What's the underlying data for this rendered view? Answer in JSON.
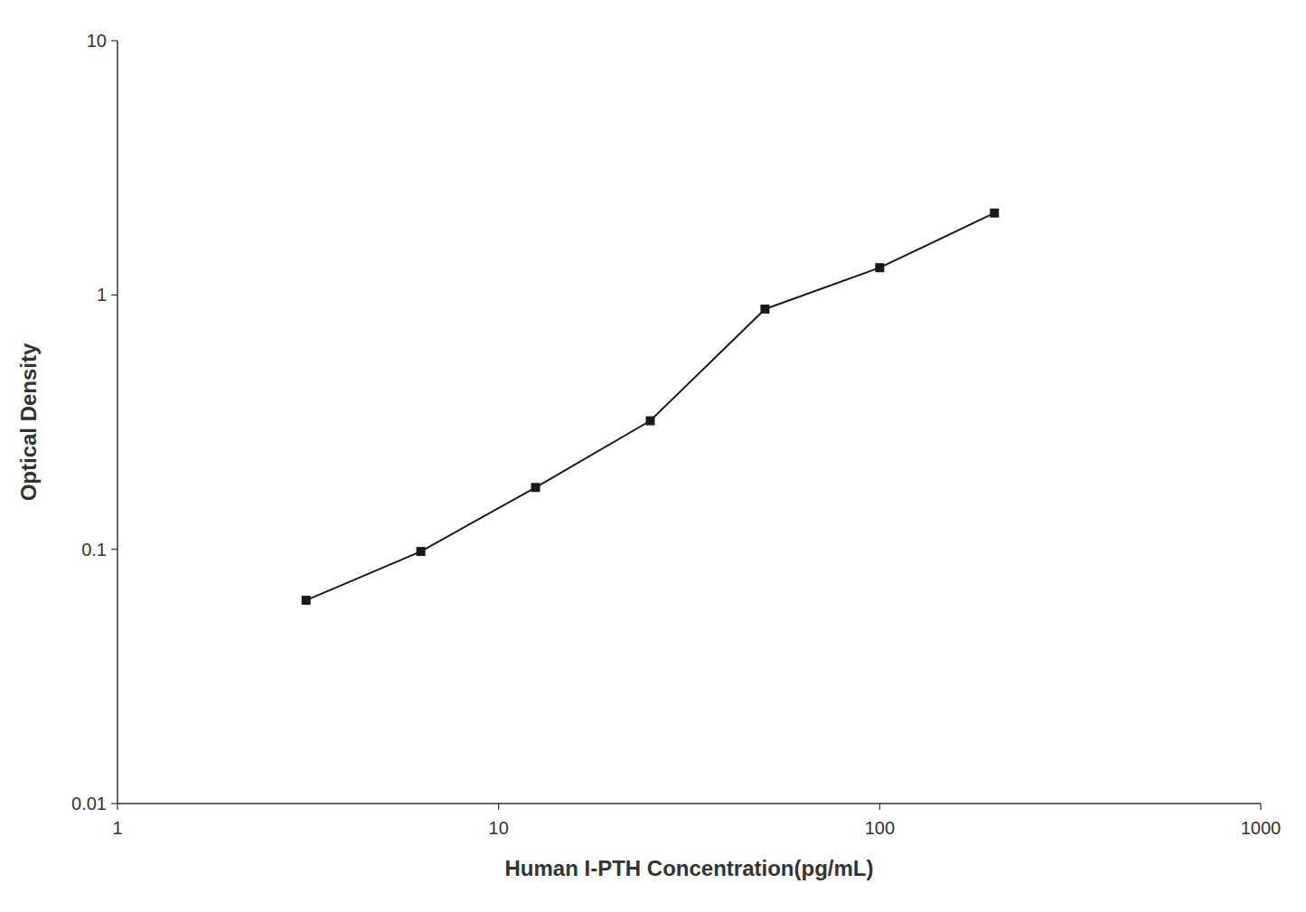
{
  "chart_data": {
    "type": "line",
    "xlabel": "Human I-PTH Concentration(pg/mL)",
    "ylabel": "Optical Density",
    "x": [
      3.125,
      6.25,
      12.5,
      25,
      50,
      100,
      200
    ],
    "values": [
      0.063,
      0.098,
      0.175,
      0.32,
      0.88,
      1.28,
      2.1
    ],
    "color": "#1a1a1a",
    "marker": "square",
    "log": true,
    "xlim": [
      1,
      1000
    ],
    "ylim": [
      0.01,
      10
    ],
    "xticks": [
      1,
      10,
      100,
      1000
    ],
    "yticks": [
      0.01,
      0.1,
      1,
      10
    ]
  }
}
